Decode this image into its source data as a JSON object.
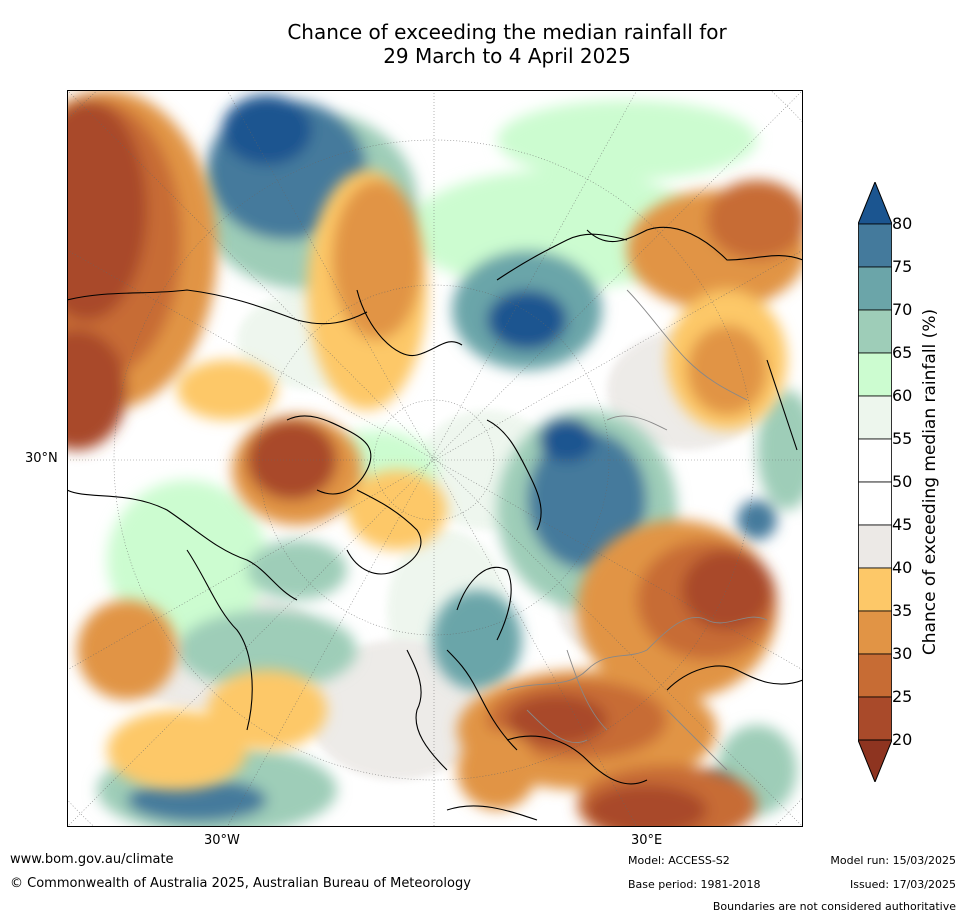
{
  "title_line1": "Chance of exceeding the median rainfall for",
  "title_line2": "29 March to 4 April 2025",
  "axis_labels": {
    "lat_30n": "30°N",
    "lon_30w": "30°W",
    "lon_30e": "30°E"
  },
  "colorbar": {
    "label": "Chance of exceeding median rainfall (%)",
    "ticks": [
      "80",
      "75",
      "70",
      "65",
      "60",
      "55",
      "50",
      "45",
      "40",
      "35",
      "30",
      "25",
      "20"
    ],
    "colors": {
      "over": "#1b5590",
      "b75_80": "#447a9c",
      "b70_75": "#6ba5a9",
      "b65_70": "#9ecdb8",
      "b60_65": "#ccfcd0",
      "b55_60": "#edf6ed",
      "b50_55": "#ffffff",
      "b45_50": "#ffffff",
      "b40_45": "#ece9e6",
      "b35_40": "#fdc868",
      "b30_35": "#e19445",
      "b25_30": "#c76c34",
      "b20_25": "#a94a2a",
      "under": "#8e3420"
    }
  },
  "footer": {
    "url": "www.bom.gov.au/climate",
    "copyright": "© Commonwealth of Australia 2025, Australian Bureau of Meteorology",
    "model": "Model: ACCESS-S2",
    "base_period": "Base period: 1981-2018",
    "model_run": "Model run: 15/03/2025",
    "issued": "Issued: 17/03/2025",
    "disclaimer": "Boundaries are not considered authoritative"
  }
}
